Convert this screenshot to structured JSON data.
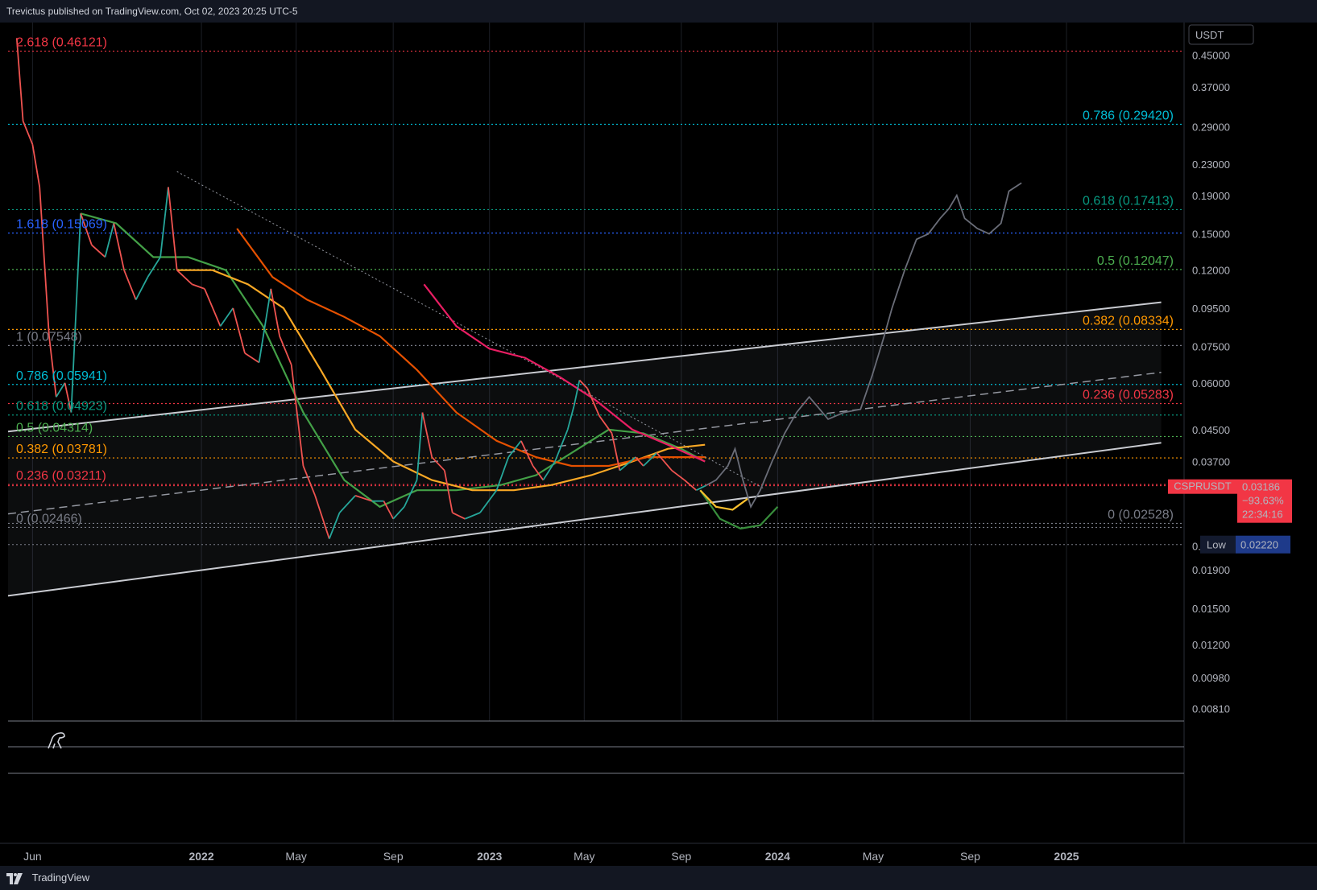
{
  "header": {
    "published": "Trevictus published on TradingView.com, Oct 02, 2023 20:25 UTC-5"
  },
  "footer": {
    "brand": "TradingView"
  },
  "colors": {
    "background": "#000000",
    "up": "#26a69a",
    "down": "#ef5350",
    "grid": "#1c1f26"
  },
  "chart_data": {
    "type": "line",
    "symbol": "CSPRUSDT",
    "currency": "USDT",
    "y_scale": "log",
    "ylim": [
      0.0075,
      0.55
    ],
    "y_ticks": [
      "0.45000",
      "0.37000",
      "0.29000",
      "0.23000",
      "0.19000",
      "0.15000",
      "0.12000",
      "0.09500",
      "0.07500",
      "0.06000",
      "0.04500",
      "0.03700",
      "0.02200",
      "0.01900",
      "0.01500",
      "0.01200",
      "0.00980",
      "0.00810"
    ],
    "x_ticks": [
      "Jun",
      "2022",
      "May",
      "Sep",
      "2023",
      "May",
      "Sep",
      "2024",
      "May",
      "Sep",
      "2025"
    ],
    "x_tick_dates": [
      "2021-06-01",
      "2022-01-01",
      "2022-05-01",
      "2022-09-01",
      "2023-01-01",
      "2023-05-01",
      "2023-09-01",
      "2024-01-01",
      "2024-05-01",
      "2024-09-01",
      "2025-01-01"
    ],
    "last_price": {
      "label": "CSPRUSDT",
      "price": "0.03186",
      "change": "−93.63%",
      "countdown": "22:34:16",
      "value": 0.03186
    },
    "low_marker": {
      "label": "Low",
      "price": "0.02220",
      "value": 0.0222
    },
    "fib_left": [
      {
        "label": "2.618 (0.46121)",
        "value": 0.46121,
        "color": "#f23645"
      },
      {
        "label": "1.618 (0.15069)",
        "value": 0.15069,
        "color": "#2962ff"
      },
      {
        "label": "1 (0.07548)",
        "value": 0.07548,
        "color": "#787b86"
      },
      {
        "label": "0.786 (0.05941)",
        "value": 0.05941,
        "color": "#00bcd4"
      },
      {
        "label": "0.618 (0.04923)",
        "value": 0.04923,
        "color": "#089981"
      },
      {
        "label": "0.5 (0.04314)",
        "value": 0.04314,
        "color": "#4caf50"
      },
      {
        "label": "0.382 (0.03781)",
        "value": 0.03781,
        "color": "#ff9800"
      },
      {
        "label": "0.236 (0.03211)",
        "value": 0.03211,
        "color": "#f23645"
      },
      {
        "label": "0 (0.02466)",
        "value": 0.02466,
        "color": "#787b86"
      }
    ],
    "fib_right": [
      {
        "label": "0.786 (0.29420)",
        "value": 0.2942,
        "color": "#00bcd4"
      },
      {
        "label": "0.618 (0.17413)",
        "value": 0.17413,
        "color": "#089981"
      },
      {
        "label": "0.5 (0.12047)",
        "value": 0.12047,
        "color": "#4caf50"
      },
      {
        "label": "0.382 (0.08334)",
        "value": 0.08334,
        "color": "#ff9800"
      },
      {
        "label": "0.236 (0.05283)",
        "value": 0.05283,
        "color": "#f23645"
      },
      {
        "label": "0 (0.02528)",
        "value": 0.02528,
        "color": "#787b86"
      }
    ],
    "price_series": [
      [
        "2021-05-12",
        0.5
      ],
      [
        "2021-05-20",
        0.3
      ],
      [
        "2021-06-01",
        0.26
      ],
      [
        "2021-06-10",
        0.2
      ],
      [
        "2021-06-22",
        0.08
      ],
      [
        "2021-07-01",
        0.055
      ],
      [
        "2021-07-12",
        0.06
      ],
      [
        "2021-07-20",
        0.05
      ],
      [
        "2021-08-01",
        0.17
      ],
      [
        "2021-08-15",
        0.14
      ],
      [
        "2021-09-01",
        0.13
      ],
      [
        "2021-09-12",
        0.16
      ],
      [
        "2021-09-25",
        0.12
      ],
      [
        "2021-10-10",
        0.1
      ],
      [
        "2021-10-25",
        0.115
      ],
      [
        "2021-11-10",
        0.13
      ],
      [
        "2021-11-20",
        0.2
      ],
      [
        "2021-12-01",
        0.12
      ],
      [
        "2021-12-20",
        0.11
      ],
      [
        "2022-01-05",
        0.107
      ],
      [
        "2022-01-25",
        0.085
      ],
      [
        "2022-02-10",
        0.095
      ],
      [
        "2022-02-25",
        0.072
      ],
      [
        "2022-03-15",
        0.068
      ],
      [
        "2022-03-30",
        0.107
      ],
      [
        "2022-04-10",
        0.08
      ],
      [
        "2022-04-25",
        0.067
      ],
      [
        "2022-05-10",
        0.036
      ],
      [
        "2022-05-25",
        0.03
      ],
      [
        "2022-06-12",
        0.023
      ],
      [
        "2022-06-25",
        0.027
      ],
      [
        "2022-07-15",
        0.03
      ],
      [
        "2022-08-05",
        0.029
      ],
      [
        "2022-08-20",
        0.029
      ],
      [
        "2022-09-01",
        0.026
      ],
      [
        "2022-09-15",
        0.028
      ],
      [
        "2022-10-01",
        0.033
      ],
      [
        "2022-10-08",
        0.05
      ],
      [
        "2022-10-20",
        0.038
      ],
      [
        "2022-11-05",
        0.035
      ],
      [
        "2022-11-15",
        0.027
      ],
      [
        "2022-12-01",
        0.026
      ],
      [
        "2022-12-20",
        0.027
      ],
      [
        "2023-01-10",
        0.031
      ],
      [
        "2023-01-25",
        0.038
      ],
      [
        "2023-02-10",
        0.042
      ],
      [
        "2023-02-25",
        0.036
      ],
      [
        "2023-03-10",
        0.033
      ],
      [
        "2023-03-25",
        0.037
      ],
      [
        "2023-04-10",
        0.045
      ],
      [
        "2023-04-18",
        0.052
      ],
      [
        "2023-04-25",
        0.061
      ],
      [
        "2023-05-05",
        0.058
      ],
      [
        "2023-05-20",
        0.049
      ],
      [
        "2023-06-05",
        0.044
      ],
      [
        "2023-06-15",
        0.035
      ],
      [
        "2023-07-05",
        0.038
      ],
      [
        "2023-07-15",
        0.036
      ],
      [
        "2023-08-01",
        0.039
      ],
      [
        "2023-08-20",
        0.035
      ],
      [
        "2023-09-05",
        0.033
      ],
      [
        "2023-09-20",
        0.031
      ],
      [
        "2023-10-02",
        0.0319
      ]
    ],
    "projection_series": [
      [
        "2023-10-02",
        0.0319
      ],
      [
        "2023-10-15",
        0.033
      ],
      [
        "2023-10-30",
        0.036
      ],
      [
        "2023-11-08",
        0.04
      ],
      [
        "2023-11-18",
        0.033
      ],
      [
        "2023-11-28",
        0.028
      ],
      [
        "2023-12-10",
        0.031
      ],
      [
        "2023-12-25",
        0.037
      ],
      [
        "2024-01-10",
        0.044
      ],
      [
        "2024-01-25",
        0.05
      ],
      [
        "2024-02-10",
        0.055
      ],
      [
        "2024-02-20",
        0.052
      ],
      [
        "2024-03-05",
        0.048
      ],
      [
        "2024-03-25",
        0.05
      ],
      [
        "2024-04-15",
        0.051
      ],
      [
        "2024-04-30",
        0.063
      ],
      [
        "2024-05-15",
        0.08
      ],
      [
        "2024-05-25",
        0.095
      ],
      [
        "2024-06-10",
        0.12
      ],
      [
        "2024-06-25",
        0.145
      ],
      [
        "2024-07-10",
        0.15
      ],
      [
        "2024-07-25",
        0.165
      ],
      [
        "2024-08-05",
        0.175
      ],
      [
        "2024-08-15",
        0.19
      ],
      [
        "2024-08-25",
        0.165
      ],
      [
        "2024-09-10",
        0.155
      ],
      [
        "2024-09-25",
        0.15
      ],
      [
        "2024-10-10",
        0.16
      ],
      [
        "2024-10-20",
        0.195
      ],
      [
        "2024-11-05",
        0.205
      ]
    ],
    "moving_averages": [
      {
        "color": "#43a047",
        "points": [
          [
            "2021-08-01",
            0.17
          ],
          [
            "2021-09-15",
            0.16
          ],
          [
            "2021-11-01",
            0.13
          ],
          [
            "2021-12-15",
            0.13
          ],
          [
            "2022-02-01",
            0.12
          ],
          [
            "2022-03-20",
            0.085
          ],
          [
            "2022-05-10",
            0.05
          ],
          [
            "2022-07-01",
            0.033
          ],
          [
            "2022-08-15",
            0.028
          ],
          [
            "2022-10-01",
            0.031
          ],
          [
            "2022-11-20",
            0.031
          ],
          [
            "2023-01-15",
            0.032
          ],
          [
            "2023-03-01",
            0.034
          ],
          [
            "2023-04-15",
            0.039
          ],
          [
            "2023-06-01",
            0.045
          ],
          [
            "2023-07-15",
            0.044
          ],
          [
            "2023-09-01",
            0.04
          ],
          [
            "2023-10-01",
            0.037
          ]
        ]
      },
      {
        "color": "#f9a825",
        "points": [
          [
            "2021-12-01",
            0.12
          ],
          [
            "2022-01-15",
            0.12
          ],
          [
            "2022-03-01",
            0.11
          ],
          [
            "2022-04-15",
            0.095
          ],
          [
            "2022-06-01",
            0.065
          ],
          [
            "2022-07-15",
            0.045
          ],
          [
            "2022-09-01",
            0.037
          ],
          [
            "2022-10-20",
            0.033
          ],
          [
            "2022-12-10",
            0.031
          ],
          [
            "2023-02-01",
            0.031
          ],
          [
            "2023-03-20",
            0.032
          ],
          [
            "2023-05-10",
            0.034
          ],
          [
            "2023-07-01",
            0.037
          ],
          [
            "2023-08-15",
            0.04
          ],
          [
            "2023-10-01",
            0.041
          ]
        ]
      },
      {
        "color": "#e65100",
        "points": [
          [
            "2022-02-15",
            0.155
          ],
          [
            "2022-04-01",
            0.115
          ],
          [
            "2022-05-15",
            0.1
          ],
          [
            "2022-07-01",
            0.09
          ],
          [
            "2022-08-15",
            0.08
          ],
          [
            "2022-10-01",
            0.065
          ],
          [
            "2022-11-20",
            0.05
          ],
          [
            "2023-01-10",
            0.042
          ],
          [
            "2023-03-01",
            0.038
          ],
          [
            "2023-04-15",
            0.036
          ],
          [
            "2023-06-01",
            0.036
          ],
          [
            "2023-07-20",
            0.038
          ],
          [
            "2023-10-01",
            0.038
          ]
        ]
      },
      {
        "color": "#e91e63",
        "points": [
          [
            "2022-10-10",
            0.11
          ],
          [
            "2022-11-20",
            0.085
          ],
          [
            "2023-01-01",
            0.074
          ],
          [
            "2023-02-15",
            0.07
          ],
          [
            "2023-04-01",
            0.062
          ],
          [
            "2023-05-15",
            0.054
          ],
          [
            "2023-07-01",
            0.045
          ],
          [
            "2023-08-15",
            0.041
          ],
          [
            "2023-10-01",
            0.037
          ]
        ]
      }
    ],
    "projected_curves": [
      {
        "color": "#388e3c",
        "points": [
          [
            "2023-09-25",
            0.031
          ],
          [
            "2023-10-20",
            0.026
          ],
          [
            "2023-11-15",
            0.0245
          ],
          [
            "2023-12-10",
            0.025
          ],
          [
            "2024-01-01",
            0.028
          ]
        ]
      },
      {
        "color": "#fbc02d",
        "points": [
          [
            "2023-09-25",
            0.031
          ],
          [
            "2023-10-15",
            0.028
          ],
          [
            "2023-11-05",
            0.0275
          ],
          [
            "2023-11-25",
            0.0295
          ]
        ]
      }
    ],
    "channel": {
      "lower": [
        [
          "2021-05-01",
          0.0162
        ],
        [
          "2025-05-01",
          0.0415
        ]
      ],
      "upper": [
        [
          "2021-05-01",
          0.0445
        ],
        [
          "2025-05-01",
          0.0985
        ]
      ],
      "mid": [
        [
          "2021-05-01",
          0.0268
        ],
        [
          "2025-05-01",
          0.064
        ]
      ]
    },
    "trendline": [
      [
        "2021-12-01",
        0.22
      ],
      [
        "2023-12-15",
        0.0313
      ]
    ]
  }
}
